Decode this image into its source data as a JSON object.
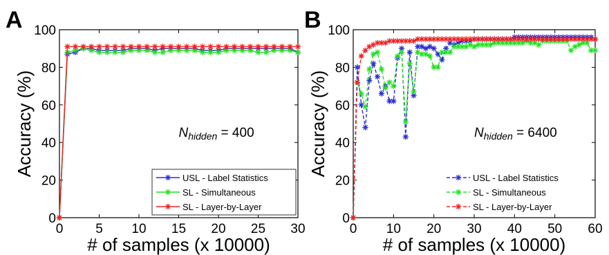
{
  "chart_data": [
    {
      "panel_label": "A",
      "type": "line",
      "xlabel": "# of samples (x 10000)",
      "ylabel": "Accuracy (%)",
      "xlim": [
        0,
        30
      ],
      "ylim": [
        0,
        100
      ],
      "xticks": [
        "0",
        "5",
        "10",
        "15",
        "20",
        "25",
        "30"
      ],
      "yticks": [
        "0",
        "20",
        "40",
        "60",
        "80",
        "100"
      ],
      "grid": false,
      "legend_position": "bottom-right",
      "annotation": {
        "main": "N",
        "sub": "hidden",
        "rest": " = 400"
      },
      "x": [
        0,
        1,
        2,
        3,
        4,
        5,
        6,
        7,
        8,
        9,
        10,
        11,
        12,
        13,
        14,
        15,
        16,
        17,
        18,
        19,
        20,
        21,
        22,
        23,
        24,
        25,
        26,
        27,
        28,
        29,
        30
      ],
      "series": [
        {
          "name": "USL - Label Statistics",
          "color": "#2b2bd6",
          "dashed": false,
          "values": [
            0,
            87,
            88,
            90,
            90,
            89,
            89,
            89,
            89,
            90,
            90,
            90,
            89,
            90,
            90,
            90,
            90,
            90,
            89,
            89,
            89,
            90,
            90,
            90,
            90,
            90,
            90,
            90,
            90,
            90,
            88
          ]
        },
        {
          "name": "SL - Simultaneous",
          "color": "#22e022",
          "dashed": false,
          "values": [
            0,
            88,
            89,
            90,
            89,
            88,
            88,
            88,
            88,
            89,
            89,
            89,
            88,
            88,
            89,
            89,
            89,
            89,
            88,
            88,
            88,
            89,
            89,
            89,
            89,
            88,
            88,
            89,
            89,
            89,
            88
          ]
        },
        {
          "name": "SL - Layer-by-Layer",
          "color": "#ee2222",
          "dashed": false,
          "values": [
            0,
            91,
            91,
            91,
            91,
            91,
            91,
            91,
            91,
            91,
            91,
            91,
            91,
            91,
            91,
            91,
            91,
            91,
            91,
            91,
            91,
            91,
            91,
            91,
            91,
            91,
            91,
            91,
            91,
            91,
            91
          ]
        }
      ]
    },
    {
      "panel_label": "B",
      "type": "line",
      "xlabel": "# of samples (x 10000)",
      "ylabel": "Accuracy (%)",
      "xlim": [
        0,
        60
      ],
      "ylim": [
        0,
        100
      ],
      "xticks": [
        "0",
        "10",
        "20",
        "30",
        "40",
        "50",
        "60"
      ],
      "yticks": [
        "0",
        "20",
        "40",
        "60",
        "80",
        "100"
      ],
      "grid": false,
      "legend_position": "bottom-right",
      "annotation": {
        "main": "N",
        "sub": "hidden",
        "rest": " = 6400"
      },
      "x": [
        0,
        1,
        2,
        3,
        4,
        5,
        6,
        7,
        8,
        9,
        10,
        11,
        12,
        13,
        14,
        15,
        16,
        17,
        18,
        19,
        20,
        21,
        22,
        23,
        24,
        25,
        26,
        27,
        28,
        29,
        30,
        31,
        32,
        33,
        34,
        35,
        36,
        37,
        38,
        39,
        40,
        41,
        42,
        43,
        44,
        45,
        46,
        47,
        48,
        49,
        50,
        51,
        52,
        53,
        54,
        55,
        56,
        57,
        58,
        59,
        60
      ],
      "series": [
        {
          "name": "USL - Label Statistics",
          "color": "#2b2bd6",
          "dashed": true,
          "values": [
            0,
            80,
            60,
            48,
            73,
            82,
            75,
            66,
            70,
            62,
            62,
            85,
            90,
            43,
            88,
            65,
            91,
            91,
            90,
            91,
            90,
            87,
            84,
            90,
            93,
            92,
            93,
            94,
            94,
            94,
            95,
            95,
            95,
            95,
            95,
            95,
            95,
            95,
            95,
            95,
            96,
            96,
            96,
            96,
            96,
            96,
            96,
            96,
            96,
            96,
            96,
            96,
            96,
            96,
            96,
            96,
            96,
            96,
            96,
            96,
            95
          ]
        },
        {
          "name": "SL - Simultaneous",
          "color": "#22e022",
          "dashed": true,
          "values": [
            0,
            72,
            66,
            59,
            79,
            87,
            88,
            79,
            69,
            72,
            70,
            86,
            88,
            51,
            82,
            67,
            88,
            87,
            87,
            86,
            80,
            80,
            88,
            88,
            88,
            91,
            91,
            91,
            91,
            92,
            91,
            92,
            92,
            92,
            92,
            93,
            93,
            93,
            93,
            93,
            93,
            93,
            93,
            94,
            93,
            93,
            92,
            94,
            94,
            94,
            94,
            94,
            94,
            94,
            89,
            91,
            92,
            93,
            93,
            89,
            89
          ]
        },
        {
          "name": "SL - Layer-by-Layer",
          "color": "#ee2222",
          "dashed": true,
          "values": [
            0,
            72,
            86,
            89,
            91,
            92,
            93,
            93,
            93,
            94,
            94,
            94,
            94,
            94,
            94,
            94,
            95,
            95,
            95,
            95,
            95,
            95,
            95,
            95,
            95,
            95,
            95,
            95,
            95,
            95,
            95,
            95,
            95,
            95,
            95,
            95,
            95,
            95,
            95,
            95,
            95,
            95,
            95,
            95,
            95,
            95,
            95,
            95,
            95,
            95,
            95,
            95,
            95,
            95,
            95,
            95,
            95,
            95,
            95,
            95,
            95
          ]
        }
      ]
    }
  ]
}
